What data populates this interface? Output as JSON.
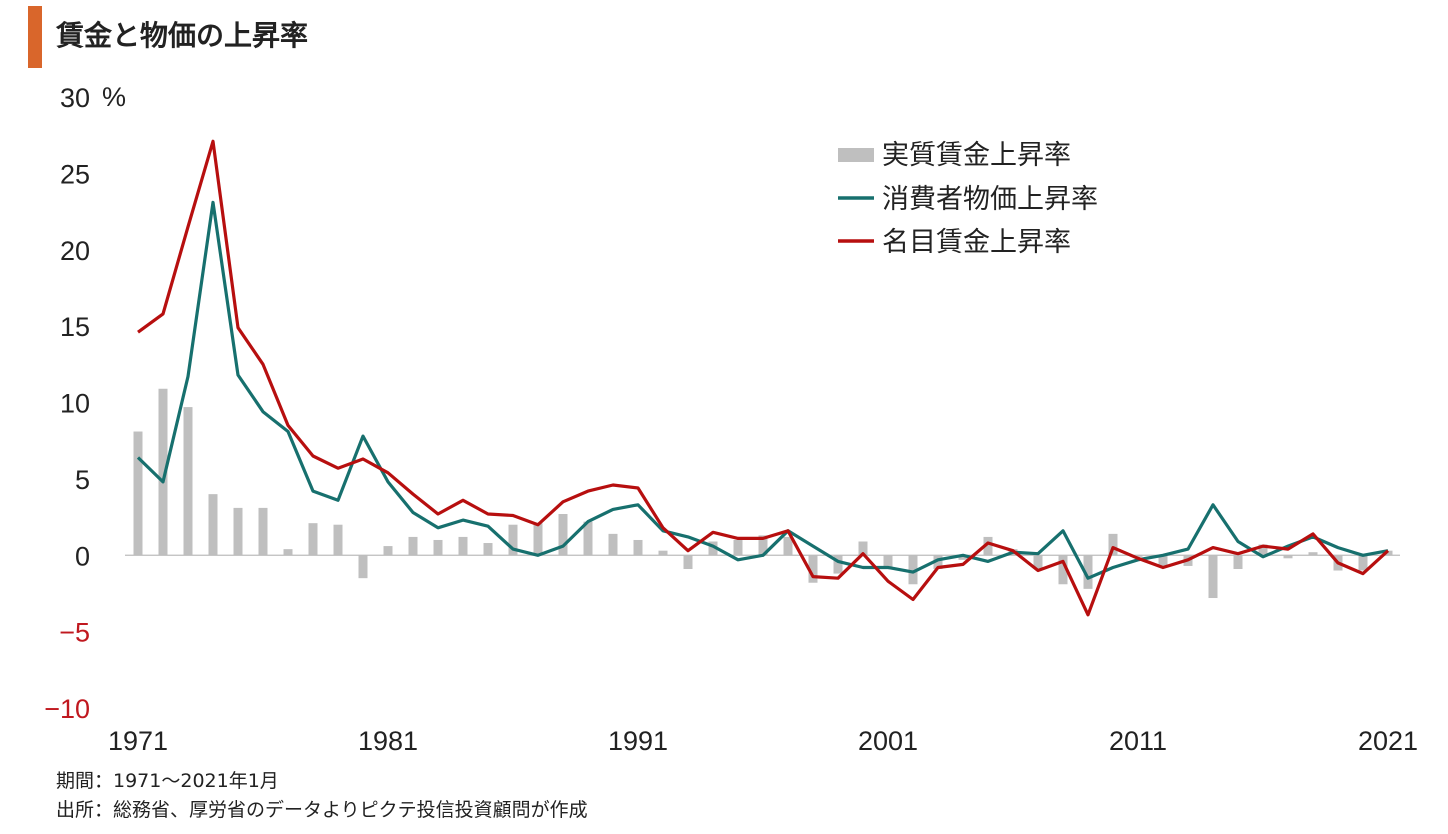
{
  "title": "賃金と物価の上昇率",
  "colors": {
    "accent": "#d9662b",
    "real_wage": "#bfbfbf",
    "cpi": "#17706e",
    "nominal_wage": "#b70f0f",
    "negative_tick": "#c0181f"
  },
  "footnotes": {
    "period": "期間：1971～2021年1月",
    "source": "出所：総務省、厚労省のデータよりピクテ投信投資顧問が作成"
  },
  "chart_data": {
    "type": "bar+line",
    "title": "賃金と物価の上昇率",
    "ylabel": "%",
    "ylim": [
      -10,
      30
    ],
    "yticks": [
      {
        "value": -10,
        "label": "−10"
      },
      {
        "value": -5,
        "label": "−5"
      },
      {
        "value": 0,
        "label": "0"
      },
      {
        "value": 5,
        "label": "5"
      },
      {
        "value": 10,
        "label": "10"
      },
      {
        "value": 15,
        "label": "15"
      },
      {
        "value": 20,
        "label": "20"
      },
      {
        "value": 25,
        "label": "25"
      },
      {
        "value": 30,
        "label": "30"
      }
    ],
    "xticks": [
      1971,
      1981,
      1991,
      2001,
      2011,
      2021
    ],
    "x": [
      1971,
      1972,
      1973,
      1974,
      1975,
      1976,
      1977,
      1978,
      1979,
      1980,
      1981,
      1982,
      1983,
      1984,
      1985,
      1986,
      1987,
      1988,
      1989,
      1990,
      1991,
      1992,
      1993,
      1994,
      1995,
      1996,
      1997,
      1998,
      1999,
      2000,
      2001,
      2002,
      2003,
      2004,
      2005,
      2006,
      2007,
      2008,
      2009,
      2010,
      2011,
      2012,
      2013,
      2014,
      2015,
      2016,
      2017,
      2018,
      2019,
      2020,
      2021
    ],
    "grid": false,
    "legend_position": "top-right",
    "series": [
      {
        "name": "実質賃金上昇率",
        "type": "bar",
        "values": [
          8.1,
          10.9,
          9.7,
          4.0,
          3.1,
          3.1,
          0.4,
          2.1,
          2.0,
          -1.5,
          0.6,
          1.2,
          1.0,
          1.2,
          0.8,
          2.0,
          2.1,
          2.7,
          2.2,
          1.4,
          1.0,
          0.3,
          -0.9,
          0.9,
          1.0,
          1.3,
          1.2,
          -1.8,
          -1.2,
          0.9,
          -0.9,
          -1.9,
          -0.9,
          -0.3,
          1.2,
          0.4,
          -0.9,
          -1.9,
          -2.2,
          1.4,
          -0.1,
          -0.7,
          -0.7,
          -2.8,
          -0.9,
          0.7,
          -0.2,
          0.2,
          -1.0,
          -1.0,
          0.3
        ]
      },
      {
        "name": "消費者物価上昇率",
        "type": "line",
        "values": [
          6.4,
          4.8,
          11.7,
          23.1,
          11.8,
          9.4,
          8.1,
          4.2,
          3.6,
          7.8,
          4.8,
          2.8,
          1.8,
          2.3,
          1.9,
          0.4,
          0.0,
          0.6,
          2.2,
          3.0,
          3.3,
          1.6,
          1.2,
          0.6,
          -0.3,
          0.0,
          1.6,
          0.6,
          -0.4,
          -0.8,
          -0.8,
          -1.1,
          -0.3,
          0.0,
          -0.4,
          0.2,
          0.1,
          1.6,
          -1.5,
          -0.8,
          -0.3,
          0.0,
          0.4,
          3.3,
          0.9,
          -0.1,
          0.6,
          1.2,
          0.5,
          0.0,
          0.3
        ]
      },
      {
        "name": "名目賃金上昇率",
        "type": "line",
        "values": [
          14.6,
          15.8,
          21.5,
          27.1,
          14.9,
          12.5,
          8.5,
          6.5,
          5.7,
          6.3,
          5.4,
          4.0,
          2.7,
          3.6,
          2.7,
          2.6,
          2.0,
          3.5,
          4.2,
          4.6,
          4.4,
          1.8,
          0.3,
          1.5,
          1.1,
          1.1,
          1.6,
          -1.4,
          -1.5,
          0.1,
          -1.7,
          -2.9,
          -0.8,
          -0.6,
          0.8,
          0.3,
          -1.0,
          -0.4,
          -3.9,
          0.5,
          -0.2,
          -0.8,
          -0.3,
          0.5,
          0.1,
          0.6,
          0.4,
          1.4,
          -0.5,
          -1.2,
          0.3
        ]
      }
    ]
  }
}
